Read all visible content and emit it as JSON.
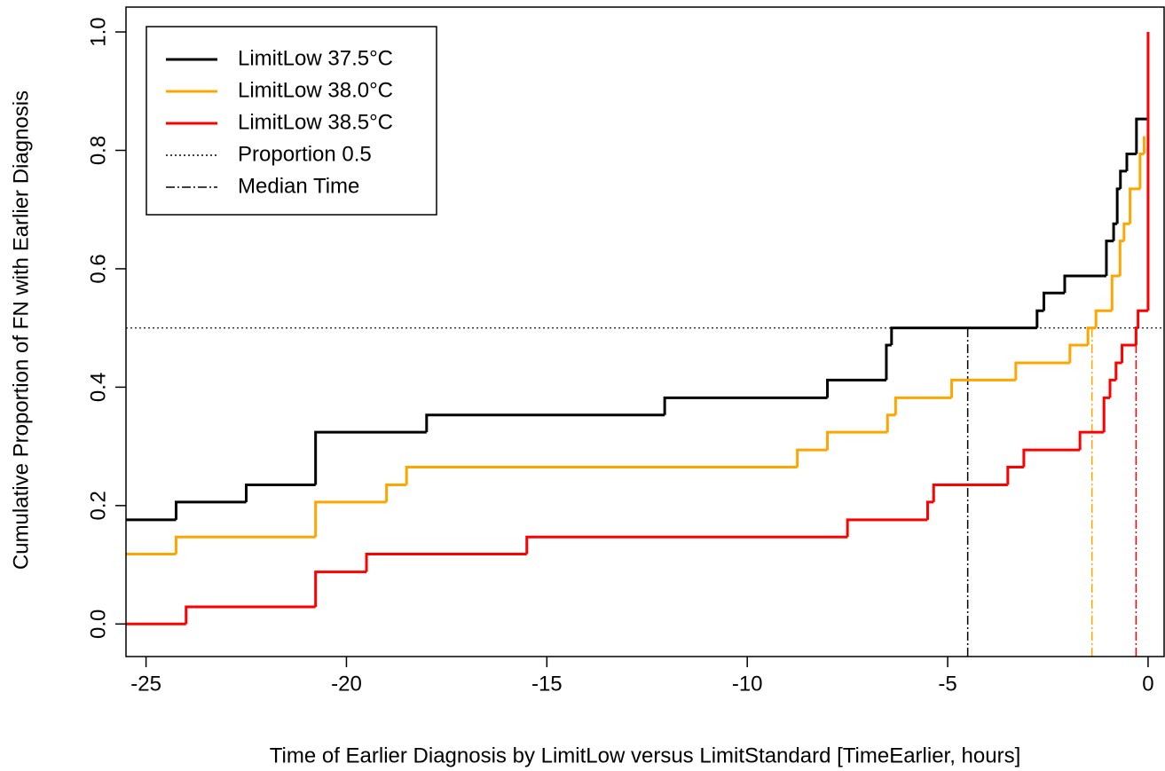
{
  "chart_data": {
    "type": "step",
    "xlabel": "Time of Earlier Diagnosis by LimitLow versus LimitStandard [TimeEarlier, hours]",
    "ylabel": "Cumulative Proportion of FN with Earlier Diagnosis",
    "xlim": [
      -25.5,
      0.4
    ],
    "ylim": [
      -0.055,
      1.042
    ],
    "xticks": [
      -25,
      -20,
      -15,
      -10,
      -5,
      0
    ],
    "yticks": [
      {
        "value": 0,
        "label": "0.0"
      },
      0.2,
      0.4,
      0.6,
      0.8,
      {
        "value": 1,
        "label": "1.0"
      }
    ],
    "legend": "top-left",
    "series": [
      {
        "name": "LimitLow 37.5°C",
        "color": "#000000",
        "x": [
          -25.5,
          -24.25,
          -22.5,
          -20.77,
          -18.0,
          -12.06,
          -8.0,
          -6.53,
          -6.4,
          -2.77,
          -2.6,
          -2.08,
          -1.04,
          -0.86,
          -0.77,
          -0.69,
          -0.53,
          -0.29,
          0
        ],
        "values": [
          0.176,
          0.206,
          0.235,
          0.324,
          0.353,
          0.382,
          0.412,
          0.471,
          0.5,
          0.529,
          0.559,
          0.588,
          0.647,
          0.676,
          0.735,
          0.765,
          0.794,
          0.853,
          0.853
        ]
      },
      {
        "name": "LimitLow 38.0°C",
        "color": "#ffa500",
        "x": [
          -25.5,
          -24.25,
          -20.77,
          -19.0,
          -18.5,
          -8.75,
          -8.0,
          -6.5,
          -6.3,
          -4.9,
          -3.3,
          -1.95,
          -1.5,
          -1.3,
          -0.9,
          -0.7,
          -0.6,
          -0.45,
          -0.2,
          -0.1
        ],
        "values": [
          0.118,
          0.147,
          0.206,
          0.235,
          0.265,
          0.294,
          0.324,
          0.353,
          0.382,
          0.412,
          0.441,
          0.471,
          0.5,
          0.529,
          0.588,
          0.647,
          0.676,
          0.735,
          0.794,
          0.824
        ]
      },
      {
        "name": "LimitLow 38.5°C",
        "color": "#ff0000",
        "x": [
          -25.5,
          -24.0,
          -20.77,
          -19.5,
          -15.5,
          -7.5,
          -5.5,
          -5.35,
          -3.5,
          -3.1,
          -1.7,
          -1.1,
          -0.95,
          -0.8,
          -0.65,
          -0.3,
          -0.25,
          0
        ],
        "values": [
          0.0,
          0.029,
          0.088,
          0.118,
          0.147,
          0.176,
          0.206,
          0.235,
          0.265,
          0.294,
          0.324,
          0.382,
          0.412,
          0.441,
          0.471,
          0.5,
          0.529,
          1.0
        ]
      }
    ],
    "hline": {
      "name": "Proportion 0.5",
      "value": 0.5
    },
    "median_lines": {
      "name": "Median Time",
      "values": [
        -4.5,
        -1.4,
        -0.3
      ]
    }
  }
}
